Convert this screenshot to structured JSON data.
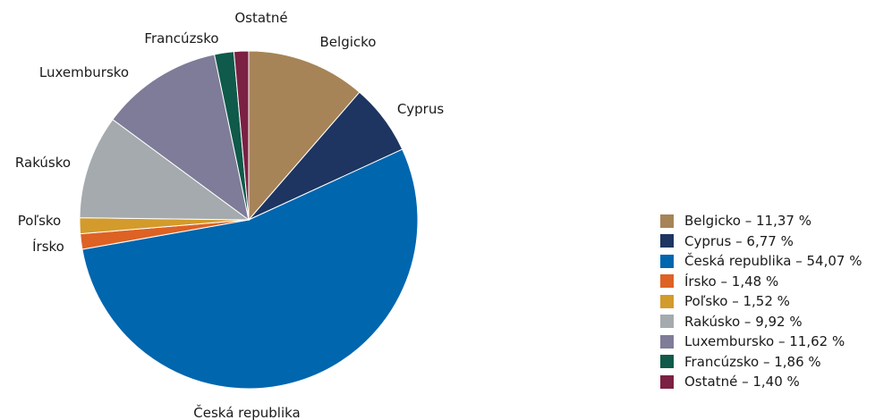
{
  "chart_data": {
    "type": "pie",
    "start_angle_deg": 0,
    "direction": "clockwise",
    "slices": [
      {
        "label": "Belgicko",
        "value": 11.37,
        "color": "#A68457",
        "legend": "Belgicko – 11,37 %"
      },
      {
        "label": "Cyprus",
        "value": 6.77,
        "color": "#1D3560",
        "legend": "Cyprus – 6,77 %"
      },
      {
        "label": "Česká republika",
        "value": 54.07,
        "color": "#0066AE",
        "legend": "Česká republika – 54,07 %"
      },
      {
        "label": "Írsko",
        "value": 1.48,
        "color": "#DD6224",
        "legend": "Írsko – 1,48 %"
      },
      {
        "label": "Poľsko",
        "value": 1.52,
        "color": "#D39B2B",
        "legend": "Poľsko – 1,52 %"
      },
      {
        "label": "Rakúsko",
        "value": 9.92,
        "color": "#A4AAAD",
        "legend": "Rakúsko – 9,92 %"
      },
      {
        "label": "Luxembursko",
        "value": 11.62,
        "color": "#7E7C98",
        "legend": "Luxembursko – 11,62 %"
      },
      {
        "label": "Francúzsko",
        "value": 1.86,
        "color": "#0F5A4A",
        "legend": "Francúzsko – 1,86 %"
      },
      {
        "label": "Ostatné",
        "value": 1.4,
        "color": "#7B2143",
        "legend": "Ostatné – 1,40 %"
      }
    ],
    "legend_position": "right"
  }
}
